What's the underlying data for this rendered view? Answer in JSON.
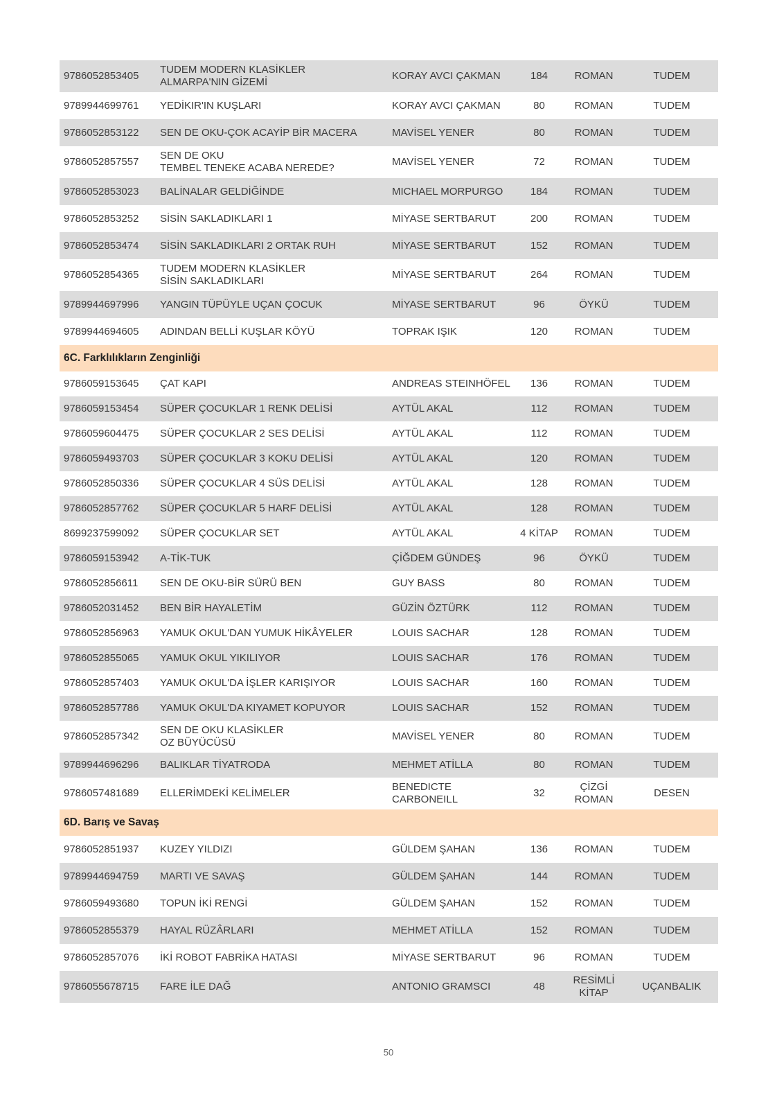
{
  "page_number": "50",
  "groups": [
    {
      "title": "",
      "rows": [
        [
          "9786052853405",
          "TUDEM MODERN KLASİKLER\nALMARPA'NIN GİZEMİ",
          "KORAY AVCI ÇAKMAN",
          "184",
          "ROMAN",
          "TUDEM"
        ],
        [
          "9789944699761",
          "YEDİKIR'IN KUŞLARI",
          "KORAY AVCI ÇAKMAN",
          "80",
          "ROMAN",
          "TUDEM"
        ],
        [
          "9786052853122",
          "SEN DE OKU-ÇOK ACAYİP BİR MACERA",
          "MAVİSEL YENER",
          "80",
          "ROMAN",
          "TUDEM"
        ],
        [
          "9786052857557",
          "SEN DE OKU\nTEMBEL TENEKE ACABA NEREDE?",
          "MAVİSEL YENER",
          "72",
          "ROMAN",
          "TUDEM"
        ],
        [
          "9786052853023",
          "BALİNALAR GELDİĞİNDE",
          "MICHAEL MORPURGO",
          "184",
          "ROMAN",
          "TUDEM"
        ],
        [
          "9786052853252",
          "SİSİN SAKLADIKLARI 1",
          "MİYASE SERTBARUT",
          "200",
          "ROMAN",
          "TUDEM"
        ],
        [
          "9786052853474",
          "SİSİN SAKLADIKLARI 2 ORTAK RUH",
          "MİYASE SERTBARUT",
          "152",
          "ROMAN",
          "TUDEM"
        ],
        [
          "9786052854365",
          "TUDEM MODERN KLASİKLER\nSİSİN SAKLADIKLARI",
          "MİYASE SERTBARUT",
          "264",
          "ROMAN",
          "TUDEM"
        ],
        [
          "9789944697996",
          "YANGIN TÜPÜYLE UÇAN ÇOCUK",
          "MİYASE SERTBARUT",
          "96",
          "ÖYKÜ",
          "TUDEM"
        ],
        [
          "9789944694605",
          "ADINDAN BELLİ KUŞLAR KÖYÜ",
          "TOPRAK IŞIK",
          "120",
          "ROMAN",
          "TUDEM"
        ]
      ]
    },
    {
      "title": "6C. Farklılıkların Zenginliği",
      "rows": [
        [
          "9786059153645",
          "ÇAT KAPI",
          "ANDREAS STEINHÖFEL",
          "136",
          "ROMAN",
          "TUDEM"
        ],
        [
          "9786059153454",
          "SÜPER ÇOCUKLAR 1 RENK DELİSİ",
          "AYTÜL AKAL",
          "112",
          "ROMAN",
          "TUDEM"
        ],
        [
          "9786059604475",
          "SÜPER ÇOCUKLAR 2 SES DELİSİ",
          "AYTÜL AKAL",
          "112",
          "ROMAN",
          "TUDEM"
        ],
        [
          "9786059493703",
          "SÜPER ÇOCUKLAR 3 KOKU DELİSİ",
          "AYTÜL AKAL",
          "120",
          "ROMAN",
          "TUDEM"
        ],
        [
          "9786052850336",
          "SÜPER ÇOCUKLAR 4 SÜS DELİSİ",
          "AYTÜL AKAL",
          "128",
          "ROMAN",
          "TUDEM"
        ],
        [
          "9786052857762",
          "SÜPER ÇOCUKLAR 5 HARF DELİSİ",
          "AYTÜL AKAL",
          "128",
          "ROMAN",
          "TUDEM"
        ],
        [
          "8699237599092",
          "SÜPER ÇOCUKLAR SET",
          "AYTÜL AKAL",
          "4 KİTAP",
          "ROMAN",
          "TUDEM"
        ],
        [
          "9786059153942",
          "A-TİK-TUK",
          "ÇİĞDEM GÜNDEŞ",
          "96",
          "ÖYKÜ",
          "TUDEM"
        ],
        [
          "9786052856611",
          "SEN DE OKU-BİR SÜRÜ BEN",
          "GUY BASS",
          "80",
          "ROMAN",
          "TUDEM"
        ],
        [
          "9786052031452",
          "BEN BİR HAYALETİM",
          "GÜZİN ÖZTÜRK",
          "112",
          "ROMAN",
          "TUDEM"
        ],
        [
          "9786052856963",
          "YAMUK OKUL'DAN YUMUK HİKÂYELER",
          "LOUIS SACHAR",
          "128",
          "ROMAN",
          "TUDEM"
        ],
        [
          "9786052855065",
          "YAMUK OKUL YIKILIYOR",
          "LOUIS SACHAR",
          "176",
          "ROMAN",
          "TUDEM"
        ],
        [
          " 9786052857403",
          "YAMUK OKUL'DA İŞLER KARIŞIYOR",
          "LOUIS SACHAR",
          "160",
          "ROMAN",
          "TUDEM"
        ],
        [
          "9786052857786",
          "YAMUK OKUL'DA KIYAMET KOPUYOR",
          "LOUIS SACHAR",
          "152",
          "ROMAN",
          "TUDEM"
        ],
        [
          "9786052857342",
          "SEN DE OKU KLASİKLER\nOZ BÜYÜCÜSÜ",
          "MAVİSEL YENER",
          "80",
          "ROMAN",
          "TUDEM"
        ],
        [
          "9789944696296",
          "BALIKLAR TİYATRODA",
          "MEHMET ATİLLA",
          "80",
          "ROMAN",
          "TUDEM"
        ],
        [
          "9786057481689",
          "ELLERİMDEKİ KELİMELER",
          "BENEDICTE\nCARBONEILL",
          "32",
          "ÇİZGİ\nROMAN",
          "DESEN"
        ]
      ]
    },
    {
      "title": "6D. Barış ve Savaş",
      "rows": [
        [
          "9786052851937",
          "KUZEY YILDIZI",
          "GÜLDEM ŞAHAN",
          "136",
          "ROMAN",
          "TUDEM"
        ],
        [
          "9789944694759",
          "MARTI VE SAVAŞ",
          "GÜLDEM ŞAHAN",
          "144",
          "ROMAN",
          "TUDEM"
        ],
        [
          "9786059493680",
          "TOPUN İKİ RENGİ",
          "GÜLDEM ŞAHAN",
          "152",
          "ROMAN",
          "TUDEM"
        ],
        [
          "9786052855379",
          "HAYAL RÜZÂRLARI",
          "MEHMET ATİLLA",
          "152",
          "ROMAN",
          "TUDEM"
        ],
        [
          "9786052857076",
          "İKİ ROBOT FABRİKA HATASI",
          "MİYASE SERTBARUT",
          "96",
          "ROMAN",
          "TUDEM"
        ],
        [
          "9786055678715",
          "FARE İLE DAĞ",
          "ANTONIO GRAMSCI",
          "48",
          "RESİMLİ\nKİTAP",
          "UÇANBALIK"
        ]
      ]
    }
  ]
}
